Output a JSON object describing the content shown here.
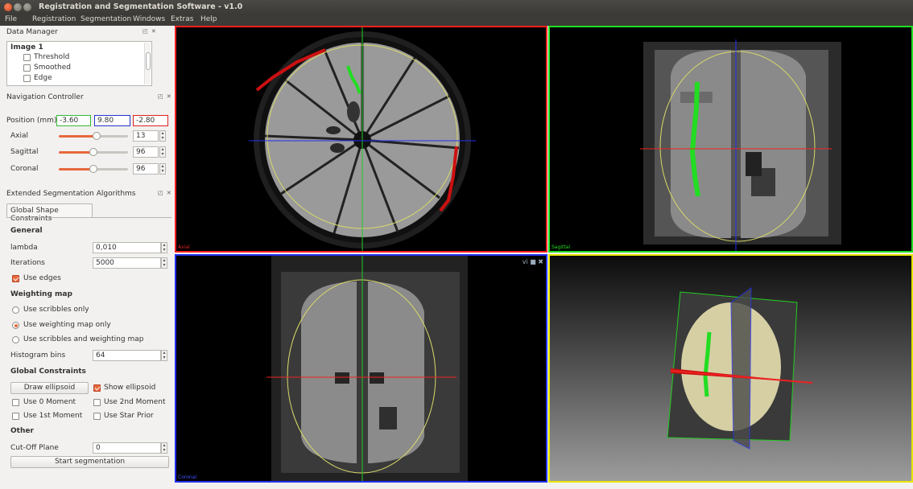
{
  "window": {
    "title": "Registration and Segmentation Software - v1.0"
  },
  "menu": [
    "File",
    "Registration",
    "Segmentation",
    "Windows",
    "Extras",
    "Help"
  ],
  "data_manager": {
    "title": "Data Manager",
    "image": "Image 1",
    "items": [
      {
        "label": "Threshold",
        "checked": false
      },
      {
        "label": "Smoothed",
        "checked": false
      },
      {
        "label": "Edge",
        "checked": false
      }
    ]
  },
  "nav": {
    "title": "Navigation Controller",
    "position_label": "Position (mm)",
    "pos_x": "-3.60",
    "pos_y": "9.80",
    "pos_z": "-2.80",
    "axial": {
      "label": "Axial",
      "value": "13",
      "level": 0.55
    },
    "sagittal": {
      "label": "Sagittal",
      "value": "96",
      "level": 0.5
    },
    "coronal": {
      "label": "Coronal",
      "value": "96",
      "level": 0.5
    }
  },
  "ext": {
    "title": "Extended Segmentation Algorithms",
    "tab": "Global Shape Constraints",
    "general": "General",
    "lambda_label": "lambda",
    "lambda_value": "0,010",
    "iter_label": "Iterations",
    "iter_value": "5000",
    "use_edges": "Use edges",
    "weighting": "Weighting map",
    "w1": "Use scribbles only",
    "w2": "Use weighting map only",
    "w3": "Use scribbles and weighting map",
    "hist_label": "Histogram bins",
    "hist_value": "64",
    "global": "Global Constraints",
    "draw_ellipsoid": "Draw ellipsoid",
    "show_ellipsoid": "Show ellipsoid",
    "m0": "Use 0 Moment",
    "m2": "Use 2nd Moment",
    "m1": "Use 1st Moment",
    "star": "Use Star Prior",
    "other": "Other",
    "cutoff_label": "Cut-Off Plane",
    "cutoff_value": "0",
    "start": "Start segmentation"
  },
  "views": {
    "axial": "Axial",
    "sagittal": "Sagittal",
    "coronal": "Coronal"
  },
  "colors": {
    "accent": "#e8683c",
    "axial": "#ff2020",
    "sagittal": "#22dd22",
    "coronal": "#2230ee",
    "threed": "#e6e600"
  }
}
